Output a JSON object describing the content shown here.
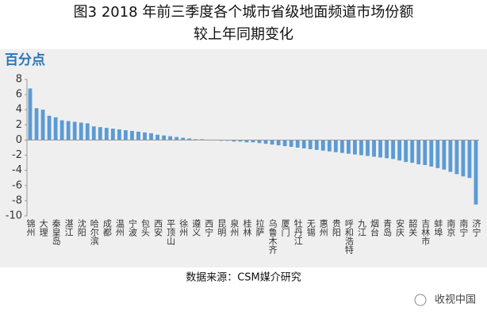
{
  "chart_data": {
    "type": "bar",
    "title": "图3 2018 年前三季度各个城市省级地面频道市场份额",
    "subtitle": "较上年同期变化",
    "y_label": "百分点",
    "source": "数据来源：CSM媒介研究",
    "watermark": "收视中国",
    "color": "#5b9bd5",
    "ylim": [
      -10,
      8
    ],
    "yticks": [
      -10,
      -8,
      -6,
      -4,
      -2,
      0,
      2,
      4,
      6,
      8
    ],
    "categories": [
      "锦州",
      null,
      "大理",
      null,
      "秦皇岛",
      null,
      "湛江",
      null,
      "沈阳",
      null,
      "哈尔滨",
      null,
      "成都",
      null,
      "温州",
      null,
      "宁波",
      null,
      "包头",
      null,
      "西安",
      null,
      "平顶山",
      null,
      "徐州",
      null,
      "遵义",
      null,
      "西宁",
      null,
      "昆明",
      null,
      "泉州",
      null,
      "桂林",
      null,
      "拉萨",
      null,
      "乌鲁木齐",
      null,
      "厦门",
      null,
      "牡丹江",
      null,
      "无锡",
      null,
      "惠州",
      null,
      "贵阳",
      null,
      "呼和浩特",
      null,
      "九江",
      null,
      "烟台",
      null,
      "青岛",
      null,
      "安庆",
      null,
      "韶关",
      null,
      "吉林市",
      null,
      "蚌埠",
      null,
      "南京",
      null,
      "南宁",
      null,
      "济宁"
    ],
    "values": [
      6.8,
      4.2,
      4.0,
      3.2,
      3.0,
      2.6,
      2.5,
      2.4,
      2.3,
      2.2,
      1.8,
      1.7,
      1.6,
      1.5,
      1.4,
      1.3,
      1.2,
      1.1,
      1.0,
      0.9,
      0.7,
      0.6,
      0.5,
      0.4,
      0.3,
      0.2,
      0.1,
      0.1,
      0.0,
      0.0,
      -0.1,
      -0.1,
      -0.2,
      -0.2,
      -0.3,
      -0.3,
      -0.4,
      -0.5,
      -0.6,
      -0.7,
      -0.8,
      -0.9,
      -1.0,
      -1.1,
      -1.2,
      -1.3,
      -1.4,
      -1.5,
      -1.6,
      -1.7,
      -1.8,
      -1.9,
      -2.0,
      -2.1,
      -2.2,
      -2.3,
      -2.4,
      -2.5,
      -2.7,
      -2.9,
      -3.0,
      -3.2,
      -3.3,
      -3.5,
      -3.7,
      -3.9,
      -4.2,
      -4.5,
      -4.8,
      -5.0,
      -8.5
    ]
  }
}
